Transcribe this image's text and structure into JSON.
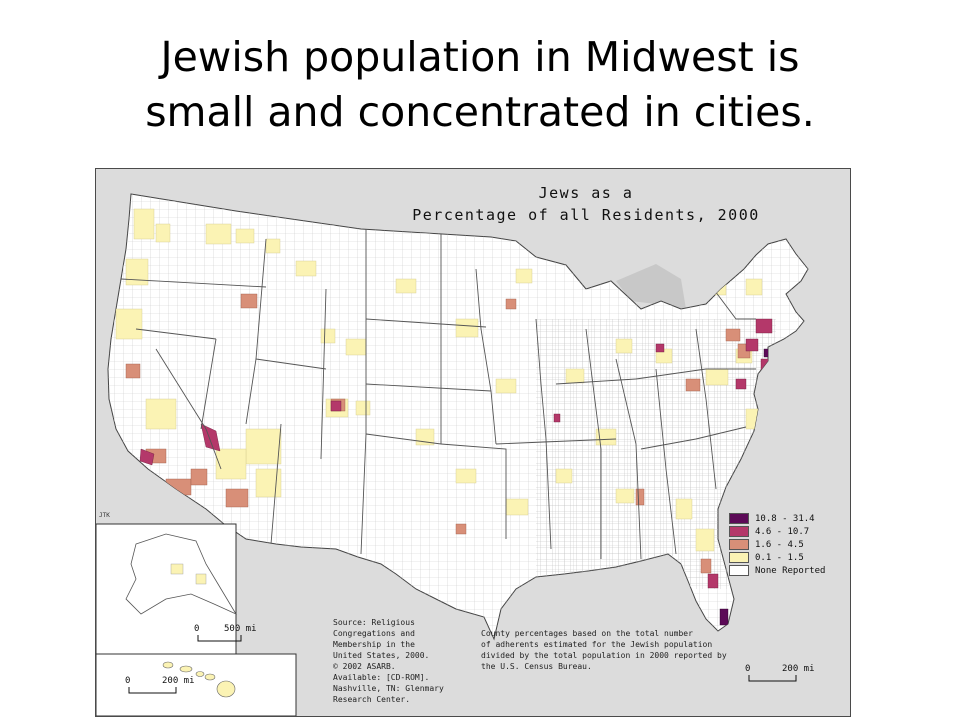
{
  "slide": {
    "title_lines": [
      "Jewish population in Midwest is",
      "small and concentrated in cities."
    ]
  },
  "map": {
    "heading_lines": [
      "Jews as a",
      "Percentage of all Residents, 2000"
    ],
    "author_initials": "JTK",
    "legend": [
      {
        "label": "10.8 - 31.4",
        "color": "#5c0a57"
      },
      {
        "label": "4.6 - 10.7",
        "color": "#b4386a"
      },
      {
        "label": "1.6 - 4.5",
        "color": "#d88f78"
      },
      {
        "label": "0.1 - 1.5",
        "color": "#fbf3b4"
      },
      {
        "label": "None Reported",
        "color": "#ffffff"
      }
    ],
    "source_note": "Source: Religious\nCongregations and\nMembership in the\nUnited States, 2000.\n© 2002 ASARB.\nAvailable: [CD-ROM].\nNashville, TN: Glenmary\nResearch Center.",
    "method_note": "County percentages based on the total number\nof adherents estimated for the Jewish population\ndivided by the total population in 2000 reported by\nthe U.S. Census Bureau.",
    "scales": {
      "alaska": {
        "start": "0",
        "end": "500 mi"
      },
      "hawaii": {
        "start": "0",
        "end": "200 mi"
      },
      "main": {
        "start": "0",
        "end": "200 mi"
      }
    },
    "colors": {
      "land": "#ffffff",
      "surround": "#dcdcdc",
      "state_border": "#555555",
      "county_line": "#c6c6c6"
    }
  }
}
